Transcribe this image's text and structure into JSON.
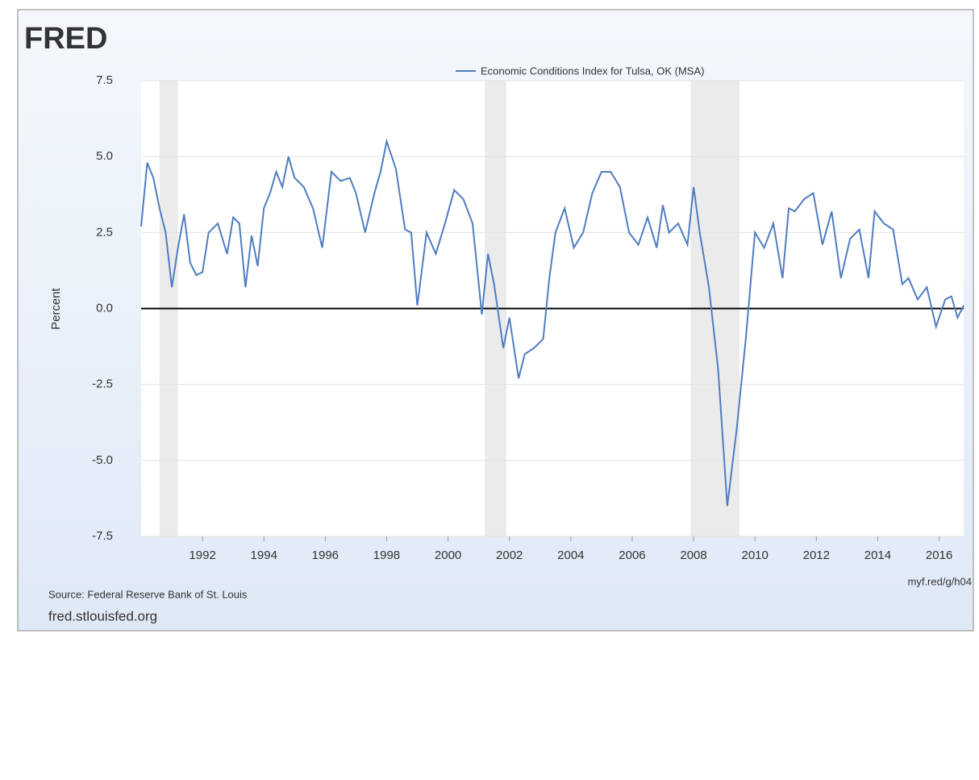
{
  "chart_data": {
    "type": "line",
    "logo": "FRED",
    "ylabel": "Percent",
    "source": "Source: Federal Reserve Bank of St. Louis",
    "site": "fred.stlouisfed.org",
    "link": "myf.red/g/h04",
    "xlim": [
      1990,
      2016.8
    ],
    "ylim": [
      -7.5,
      7.5
    ],
    "xticks": [
      1992,
      1994,
      1996,
      1998,
      2000,
      2002,
      2004,
      2006,
      2008,
      2010,
      2012,
      2014,
      2016
    ],
    "yticks": [
      7.5,
      {
        "value": 5,
        "label": "5.0"
      },
      2.5,
      {
        "value": 0,
        "label": "0.0"
      },
      -2.5,
      {
        "value": -5,
        "label": "-5.0"
      },
      -7.5
    ],
    "grid": true,
    "zero_line": true,
    "recessions": [
      [
        1990.6,
        1991.2
      ],
      [
        2001.2,
        2001.9
      ],
      [
        2007.9,
        2009.5
      ]
    ],
    "x": [
      1990.0,
      1990.2,
      1990.4,
      1990.6,
      1990.8,
      1991.0,
      1991.2,
      1991.4,
      1991.6,
      1991.8,
      1992.0,
      1992.2,
      1992.5,
      1992.8,
      1993.0,
      1993.2,
      1993.4,
      1993.6,
      1993.8,
      1994.0,
      1994.2,
      1994.4,
      1994.6,
      1994.8,
      1995.0,
      1995.3,
      1995.6,
      1995.9,
      1996.2,
      1996.5,
      1996.8,
      1997.0,
      1997.3,
      1997.6,
      1997.8,
      1998.0,
      1998.3,
      1998.6,
      1998.8,
      1999.0,
      1999.3,
      1999.6,
      1999.9,
      2000.2,
      2000.5,
      2000.8,
      2001.1,
      2001.3,
      2001.5,
      2001.8,
      2002.0,
      2002.3,
      2002.5,
      2002.8,
      2003.1,
      2003.3,
      2003.5,
      2003.8,
      2004.1,
      2004.4,
      2004.7,
      2005.0,
      2005.3,
      2005.6,
      2005.9,
      2006.2,
      2006.5,
      2006.8,
      2007.0,
      2007.2,
      2007.5,
      2007.8,
      2008.0,
      2008.2,
      2008.5,
      2008.8,
      2009.1,
      2009.4,
      2009.7,
      2010.0,
      2010.3,
      2010.6,
      2010.9,
      2011.1,
      2011.3,
      2011.6,
      2011.9,
      2012.2,
      2012.5,
      2012.8,
      2013.1,
      2013.4,
      2013.7,
      2013.9,
      2014.2,
      2014.5,
      2014.8,
      2015.0,
      2015.3,
      2015.6,
      2015.9,
      2016.2,
      2016.4,
      2016.6,
      2016.8
    ],
    "series": [
      {
        "name": "Economic Conditions Index for Tulsa, OK (MSA)",
        "color": "#4f7dc0",
        "values": [
          2.7,
          4.8,
          4.3,
          3.3,
          2.5,
          0.7,
          2.0,
          3.1,
          1.5,
          1.1,
          1.2,
          2.5,
          2.8,
          1.8,
          3.0,
          2.8,
          0.7,
          2.4,
          1.4,
          3.3,
          3.8,
          4.5,
          4.0,
          5.0,
          4.3,
          4.0,
          3.3,
          2.0,
          4.5,
          4.2,
          4.3,
          3.8,
          2.5,
          3.8,
          4.5,
          5.5,
          4.6,
          2.6,
          2.5,
          0.1,
          2.5,
          1.8,
          2.8,
          3.9,
          3.6,
          2.8,
          -0.2,
          1.8,
          0.8,
          -1.3,
          -0.3,
          -2.3,
          -1.5,
          -1.3,
          -1.0,
          1.0,
          2.5,
          3.3,
          2.0,
          2.5,
          3.8,
          4.5,
          4.5,
          4.0,
          2.5,
          2.1,
          3.0,
          2.0,
          3.4,
          2.5,
          2.8,
          2.1,
          4.0,
          2.5,
          0.7,
          -2.0,
          -6.5,
          -4.0,
          -1.0,
          2.5,
          2.0,
          2.8,
          1.0,
          3.3,
          3.2,
          3.6,
          3.8,
          2.1,
          3.2,
          1.0,
          2.3,
          2.6,
          1.0,
          3.2,
          2.8,
          2.6,
          0.8,
          1.0,
          0.3,
          0.7,
          -0.6,
          0.3,
          0.4,
          -0.3,
          0.1
        ]
      }
    ]
  }
}
